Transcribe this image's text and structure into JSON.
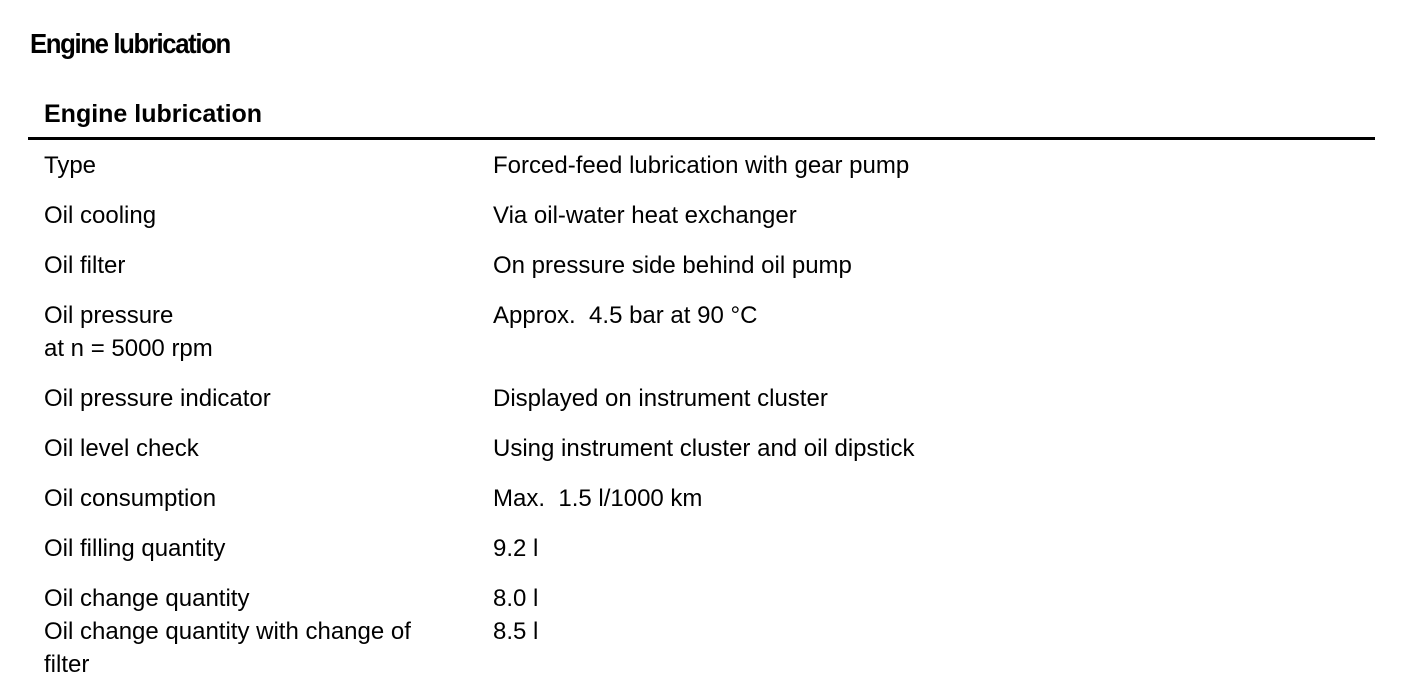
{
  "header": {
    "title": "Engine lubrication"
  },
  "table": {
    "title": "Engine lubrication",
    "rows": [
      [
        [
          "Type"
        ],
        [
          "Forced-feed lubrication with gear pump"
        ]
      ],
      [
        [
          "Oil cooling"
        ],
        [
          "Via oil-water heat exchanger"
        ]
      ],
      [
        [
          "Oil filter"
        ],
        [
          "On pressure side behind oil pump"
        ]
      ],
      [
        [
          "Oil pressure",
          "at n = 5000 rpm"
        ],
        [
          "Approx.  4.5 bar at 90 °C"
        ]
      ],
      [
        [
          "Oil pressure indicator"
        ],
        [
          "Displayed on instrument cluster"
        ]
      ],
      [
        [
          "Oil level check"
        ],
        [
          "Using instrument cluster and oil dipstick"
        ]
      ],
      [
        [
          "Oil consumption"
        ],
        [
          "Max.  1.5 l/1000 km"
        ]
      ],
      [
        [
          "Oil filling quantity"
        ],
        [
          "9.2 l"
        ]
      ],
      [
        [
          "Oil change quantity",
          "Oil change quantity with change of filter"
        ],
        [
          "8.0 l",
          "8.5 l"
        ]
      ]
    ]
  }
}
